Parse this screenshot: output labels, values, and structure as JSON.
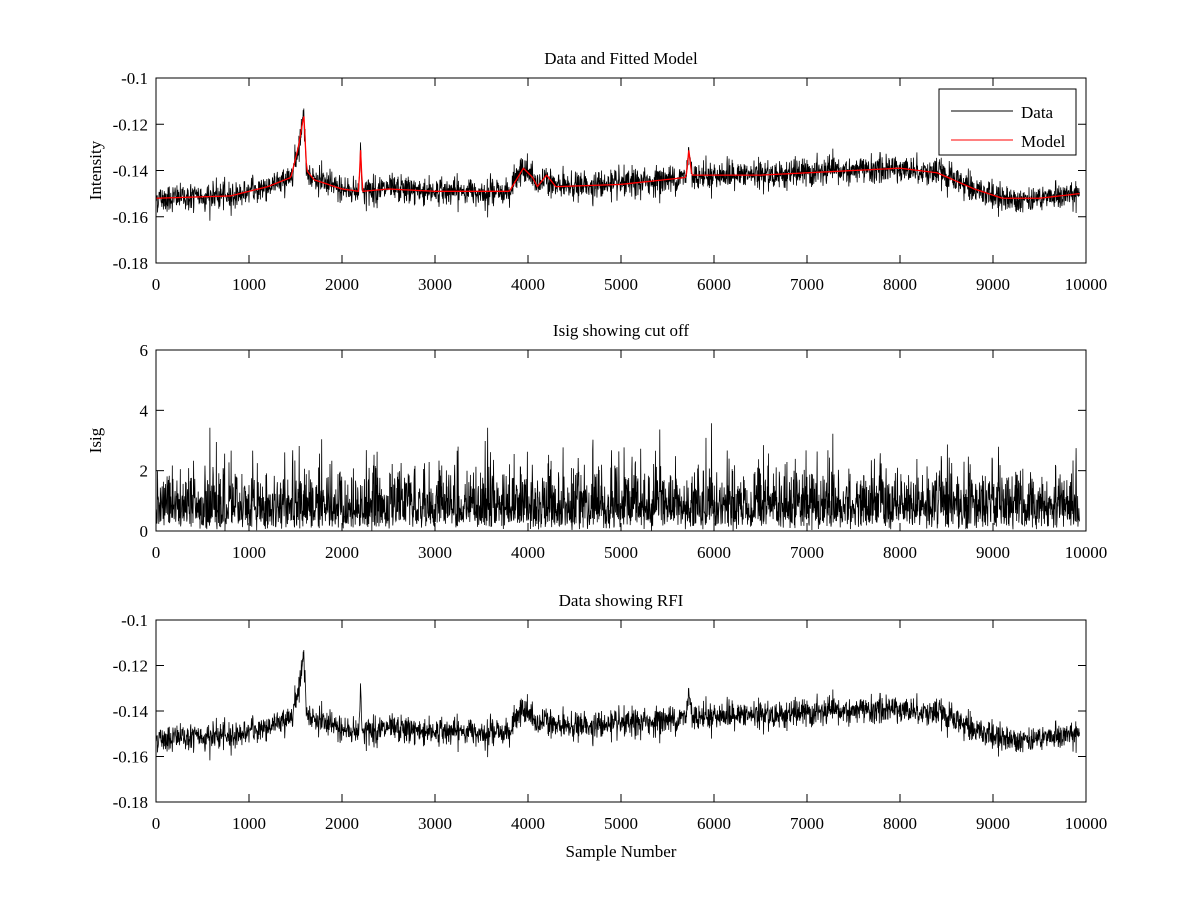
{
  "chart_data": [
    {
      "type": "line",
      "title": "Data and Fitted Model",
      "xlabel": "",
      "ylabel": "Intensity",
      "xlim": [
        0,
        10000
      ],
      "ylim": [
        -0.18,
        -0.1
      ],
      "xticks": [
        0,
        1000,
        2000,
        3000,
        4000,
        5000,
        6000,
        7000,
        8000,
        9000,
        10000
      ],
      "yticks": [
        -0.18,
        -0.16,
        -0.14,
        -0.12,
        -0.1
      ],
      "ytick_labels": [
        "-0.18",
        "-0.16",
        "-0.14",
        "-0.12",
        "-0.1"
      ],
      "legend": {
        "placement": "top-right",
        "entries": [
          "Data",
          "Model"
        ]
      },
      "grid": false,
      "series": [
        {
          "name": "Data",
          "color": "#000000",
          "noise_std": 0.003,
          "x_max": 9930
        },
        {
          "name": "Model",
          "color": "#ff0000",
          "x": [
            0,
            800,
            1200,
            1450,
            1530,
            1590,
            1620,
            1700,
            2000,
            2180,
            2200,
            2220,
            2500,
            3000,
            3800,
            3950,
            4050,
            4100,
            4200,
            4300,
            5000,
            5700,
            5730,
            5760,
            6500,
            7000,
            8000,
            8400,
            8800,
            9100,
            9500,
            9930
          ],
          "y": [
            -0.152,
            -0.151,
            -0.147,
            -0.143,
            -0.13,
            -0.116,
            -0.14,
            -0.144,
            -0.148,
            -0.149,
            -0.131,
            -0.149,
            -0.148,
            -0.149,
            -0.149,
            -0.139,
            -0.143,
            -0.147,
            -0.142,
            -0.147,
            -0.146,
            -0.143,
            -0.131,
            -0.142,
            -0.142,
            -0.141,
            -0.139,
            -0.141,
            -0.148,
            -0.152,
            -0.152,
            -0.15
          ]
        }
      ]
    },
    {
      "type": "line",
      "title": "Isig showing cut off",
      "xlabel": "",
      "ylabel": "Isig",
      "xlim": [
        0,
        10000
      ],
      "ylim": [
        0,
        6
      ],
      "xticks": [
        0,
        1000,
        2000,
        3000,
        4000,
        5000,
        6000,
        7000,
        8000,
        9000,
        10000
      ],
      "yticks": [
        0,
        2,
        4,
        6
      ],
      "ytick_labels": [
        "0",
        "2",
        "4",
        "6"
      ],
      "grid": false,
      "series": [
        {
          "name": "Isig",
          "color": "#000000",
          "typical_max": 3.5,
          "peak": 3.9
        }
      ]
    },
    {
      "type": "line",
      "title": "Data showing RFI",
      "xlabel": "Sample Number",
      "ylabel": "",
      "xlim": [
        0,
        10000
      ],
      "ylim": [
        -0.18,
        -0.1
      ],
      "xticks": [
        0,
        1000,
        2000,
        3000,
        4000,
        5000,
        6000,
        7000,
        8000,
        9000,
        10000
      ],
      "yticks": [
        -0.18,
        -0.16,
        -0.14,
        -0.12,
        -0.1
      ],
      "ytick_labels": [
        "-0.18",
        "-0.16",
        "-0.14",
        "-0.12",
        "-0.1"
      ],
      "grid": false,
      "series": [
        {
          "name": "Data",
          "color": "#000000"
        }
      ]
    }
  ]
}
